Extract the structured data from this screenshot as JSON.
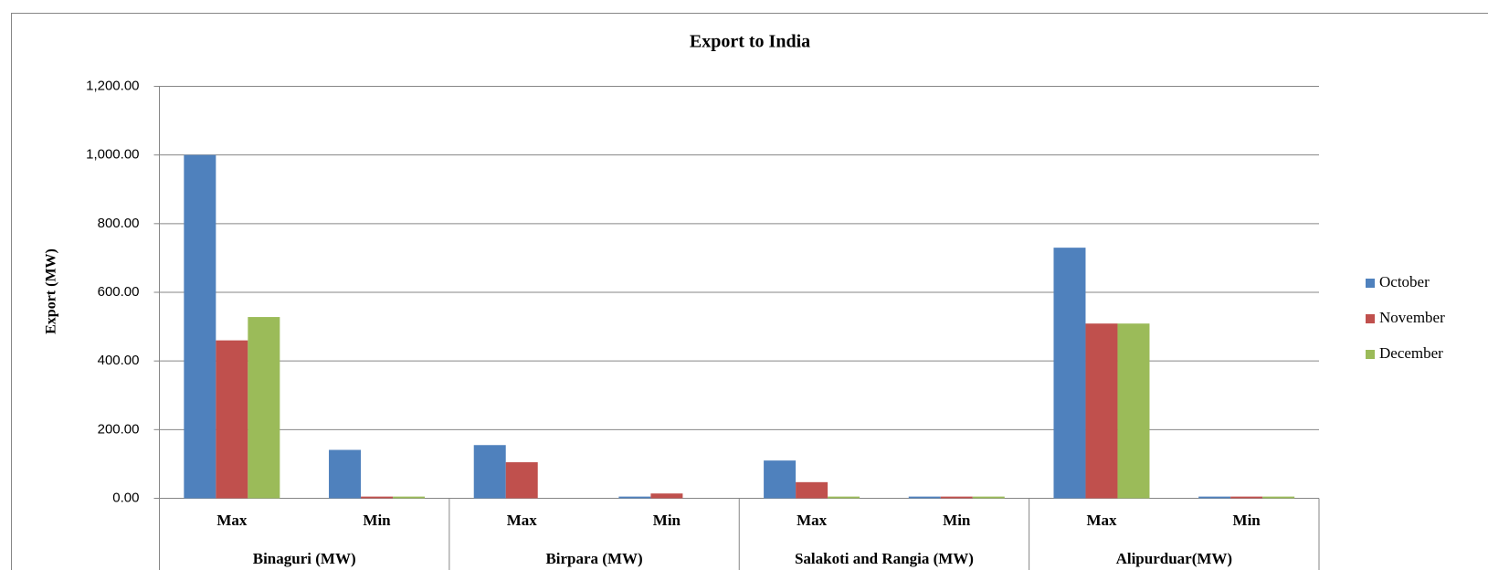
{
  "chart_data": {
    "type": "bar",
    "title": "Export  to India",
    "y_label": "Export  (MW)",
    "categories": [
      "Max",
      "Min",
      "Max",
      "Min",
      "Max",
      "Min",
      "Max",
      "Min"
    ],
    "groups": [
      "Binaguri (MW)",
      "Birpara (MW)",
      "Salakoti and Rangia (MW)",
      "Alipurduar(MW)"
    ],
    "series": [
      {
        "name": "October",
        "color": "#4f81bd",
        "values": [
          1000,
          141,
          155,
          5,
          110,
          5,
          730,
          5
        ]
      },
      {
        "name": "November",
        "color": "#c0504d",
        "values": [
          460,
          5,
          105,
          14,
          47,
          5,
          509,
          5
        ]
      },
      {
        "name": "December",
        "color": "#9bbb59",
        "values": [
          528,
          5,
          0,
          0,
          5,
          5,
          509,
          5
        ]
      }
    ],
    "ylim": [
      0,
      1200
    ],
    "yticks": [
      {
        "value": 0,
        "label": "0.00"
      },
      {
        "value": 200,
        "label": "200.00"
      },
      {
        "value": 400,
        "label": "400.00"
      },
      {
        "value": 600,
        "label": "600.00"
      },
      {
        "value": 800,
        "label": "800.00"
      },
      {
        "value": 1000,
        "label": "1,000.00"
      },
      {
        "value": 1200,
        "label": "1,200.00"
      }
    ],
    "grid": true,
    "legend": "right"
  }
}
